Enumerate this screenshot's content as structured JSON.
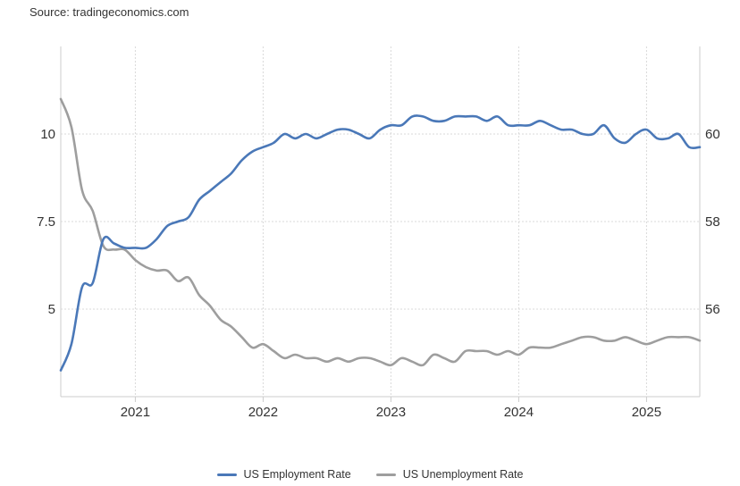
{
  "source": "Source: tradingeconomics.com",
  "colors": {
    "employment": "#4a78b8",
    "unemployment": "#9e9e9e",
    "grid": "#d9d9d9",
    "axis": "#cccccc"
  },
  "chart_data": {
    "type": "line",
    "title": "",
    "xlabel": "",
    "ylabel": "",
    "x_ticks": [
      "2021",
      "2022",
      "2023",
      "2024",
      "2025"
    ],
    "x_range": [
      "2020-06",
      "2025-06"
    ],
    "y_left_ticks": [
      "5",
      "7.5",
      "10"
    ],
    "y_left_range": [
      2.5,
      12.5
    ],
    "y_right_ticks": [
      "56",
      "58",
      "60"
    ],
    "y_right_range": [
      54,
      62
    ],
    "grid": true,
    "legend_position": "bottom",
    "series": [
      {
        "name": "US Employment Rate",
        "axis": "right",
        "x": [
          "2020-06",
          "2020-07",
          "2020-08",
          "2020-09",
          "2020-10",
          "2020-11",
          "2020-12",
          "2021-01",
          "2021-02",
          "2021-03",
          "2021-04",
          "2021-05",
          "2021-06",
          "2021-07",
          "2021-08",
          "2021-09",
          "2021-10",
          "2021-11",
          "2021-12",
          "2022-01",
          "2022-02",
          "2022-03",
          "2022-04",
          "2022-05",
          "2022-06",
          "2022-07",
          "2022-08",
          "2022-09",
          "2022-10",
          "2022-11",
          "2022-12",
          "2023-01",
          "2023-02",
          "2023-03",
          "2023-04",
          "2023-05",
          "2023-06",
          "2023-07",
          "2023-08",
          "2023-09",
          "2023-10",
          "2023-11",
          "2023-12",
          "2024-01",
          "2024-02",
          "2024-03",
          "2024-04",
          "2024-05",
          "2024-06",
          "2024-07",
          "2024-08",
          "2024-09",
          "2024-10",
          "2024-11",
          "2024-12",
          "2025-01",
          "2025-02",
          "2025-03",
          "2025-04",
          "2025-05",
          "2025-06"
        ],
        "values": [
          54.6,
          55.2,
          56.5,
          56.6,
          57.6,
          57.5,
          57.4,
          57.4,
          57.4,
          57.6,
          57.9,
          58.0,
          58.1,
          58.5,
          58.7,
          58.9,
          59.1,
          59.4,
          59.6,
          59.7,
          59.8,
          60.0,
          59.9,
          60.0,
          59.9,
          60.0,
          60.1,
          60.1,
          60.0,
          59.9,
          60.1,
          60.2,
          60.2,
          60.4,
          60.4,
          60.3,
          60.3,
          60.4,
          60.4,
          60.4,
          60.3,
          60.4,
          60.2,
          60.2,
          60.2,
          60.3,
          60.2,
          60.1,
          60.1,
          60.0,
          60.0,
          60.2,
          59.9,
          59.8,
          60.0,
          60.1,
          59.9,
          59.9,
          60.0,
          59.7,
          59.7
        ]
      },
      {
        "name": "US Unemployment Rate",
        "axis": "left",
        "x": [
          "2020-06",
          "2020-07",
          "2020-08",
          "2020-09",
          "2020-10",
          "2020-11",
          "2020-12",
          "2021-01",
          "2021-02",
          "2021-03",
          "2021-04",
          "2021-05",
          "2021-06",
          "2021-07",
          "2021-08",
          "2021-09",
          "2021-10",
          "2021-11",
          "2021-12",
          "2022-01",
          "2022-02",
          "2022-03",
          "2022-04",
          "2022-05",
          "2022-06",
          "2022-07",
          "2022-08",
          "2022-09",
          "2022-10",
          "2022-11",
          "2022-12",
          "2023-01",
          "2023-02",
          "2023-03",
          "2023-04",
          "2023-05",
          "2023-06",
          "2023-07",
          "2023-08",
          "2023-09",
          "2023-10",
          "2023-11",
          "2023-12",
          "2024-01",
          "2024-02",
          "2024-03",
          "2024-04",
          "2024-05",
          "2024-06",
          "2024-07",
          "2024-08",
          "2024-09",
          "2024-10",
          "2024-11",
          "2024-12",
          "2025-01",
          "2025-02",
          "2025-03",
          "2025-04",
          "2025-05",
          "2025-06"
        ],
        "values": [
          11.0,
          10.2,
          8.4,
          7.8,
          6.8,
          6.7,
          6.7,
          6.4,
          6.2,
          6.1,
          6.1,
          5.8,
          5.9,
          5.4,
          5.1,
          4.7,
          4.5,
          4.2,
          3.9,
          4.0,
          3.8,
          3.6,
          3.7,
          3.6,
          3.6,
          3.5,
          3.6,
          3.5,
          3.6,
          3.6,
          3.5,
          3.4,
          3.6,
          3.5,
          3.4,
          3.7,
          3.6,
          3.5,
          3.8,
          3.8,
          3.8,
          3.7,
          3.8,
          3.7,
          3.9,
          3.9,
          3.9,
          4.0,
          4.1,
          4.2,
          4.2,
          4.1,
          4.1,
          4.2,
          4.1,
          4.0,
          4.1,
          4.2,
          4.2,
          4.2,
          4.1
        ]
      }
    ]
  },
  "legend": {
    "items": [
      {
        "label": "US Employment Rate",
        "color": "#4a78b8"
      },
      {
        "label": "US Unemployment Rate",
        "color": "#9e9e9e"
      }
    ]
  }
}
